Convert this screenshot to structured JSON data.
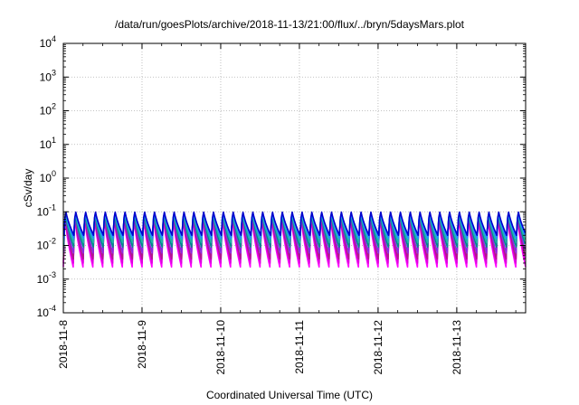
{
  "chart_data": {
    "type": "line",
    "title": "/data/run/goesPlots/archive/2018-11-13/21:00/flux/../bryn/5daysMars.plot",
    "xlabel": "Coordinated Universal Time (UTC)",
    "ylabel": "cSv/day",
    "y_scale": "log",
    "ylim": [
      0.0001,
      10000
    ],
    "y_ticks": [
      {
        "base": "10",
        "exp": "4"
      },
      {
        "base": "10",
        "exp": "3"
      },
      {
        "base": "10",
        "exp": "2"
      },
      {
        "base": "10",
        "exp": "1"
      },
      {
        "base": "10",
        "exp": "0"
      },
      {
        "base": "10",
        "exp": "-1"
      },
      {
        "base": "10",
        "exp": "-2"
      },
      {
        "base": "10",
        "exp": "-3"
      },
      {
        "base": "10",
        "exp": "-4"
      }
    ],
    "xlim": [
      "2018-11-08",
      "2018-11-13 21:00"
    ],
    "x_ticks": [
      "2018-11-8",
      "2018-11-9",
      "2018-11-10",
      "2018-11-11",
      "2018-11-12",
      "2018-11-13"
    ],
    "grid": true,
    "cycles_per_day": 8,
    "series": [
      {
        "color": "#ff00ff",
        "peak": 0.09,
        "trough": 0.0023
      },
      {
        "color": "#dd00dd",
        "peak": 0.095,
        "trough": 0.003
      },
      {
        "color": "#b0188c",
        "peak": 0.1,
        "trough": 0.004
      },
      {
        "color": "#8a2be2",
        "peak": 0.105,
        "trough": 0.006
      },
      {
        "color": "#008b8b",
        "peak": 0.11,
        "trough": 0.009
      },
      {
        "color": "#20b2aa",
        "peak": 0.115,
        "trough": 0.012
      },
      {
        "color": "#1e90ff",
        "peak": 0.12,
        "trough": 0.016
      },
      {
        "color": "#0000cd",
        "peak": 0.125,
        "trough": 0.02
      }
    ],
    "plotted_series_color": "#ff0000"
  }
}
